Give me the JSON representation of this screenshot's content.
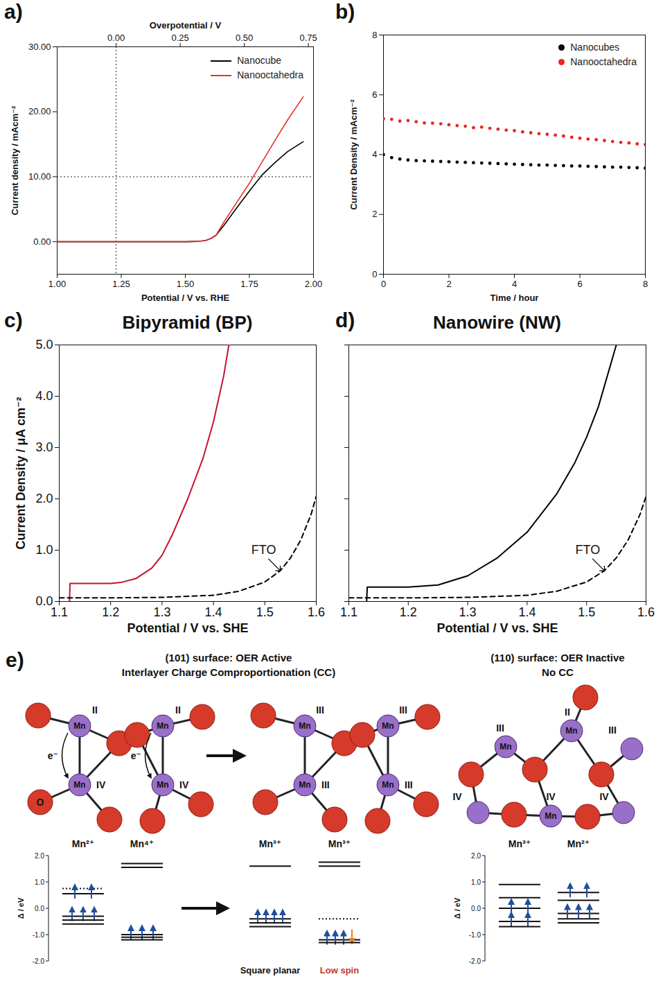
{
  "chart_data": [
    {
      "type": "line",
      "panel_label": "a)",
      "xlabel": "Potential / V vs. RHE",
      "ylabel": "Current density / mAcm⁻²",
      "x2label": "Overpotential / V",
      "xlim": [
        1.0,
        2.0
      ],
      "xticks": [
        {
          "value": 1,
          "label": "1.00"
        },
        1.25,
        {
          "value": 1.5,
          "label": "1.50"
        },
        1.75,
        {
          "value": 2,
          "label": "2.00"
        }
      ],
      "x2lim": [
        -0.23,
        0.77
      ],
      "x2ticks": [
        {
          "value": 0,
          "label": "0.00"
        },
        0.25,
        {
          "value": 0.5,
          "label": "0.50"
        },
        0.75
      ],
      "ylim": [
        -5,
        30
      ],
      "yticks": [
        {
          "value": 0,
          "label": "0.00"
        },
        {
          "value": 10,
          "label": "10.00"
        },
        {
          "value": 20,
          "label": "20.00"
        },
        {
          "value": 30,
          "label": "30.00"
        }
      ],
      "reference_lines": [
        {
          "axis": "x",
          "value": 1.23,
          "line_style": "dotted"
        },
        {
          "axis": "y",
          "value": 10,
          "line_style": "dotted"
        }
      ],
      "legend": "top-right",
      "x": [
        1.0,
        1.25,
        1.5,
        1.55,
        1.58,
        1.6,
        1.62,
        1.65,
        1.7,
        1.75,
        1.8,
        1.85,
        1.9,
        1.96
      ],
      "series": [
        {
          "name": "Nanocube",
          "color": "#000000",
          "values": [
            0,
            0,
            0,
            0.05,
            0.2,
            0.5,
            1.0,
            2.5,
            5.2,
            7.8,
            10.3,
            12.2,
            13.9,
            15.4
          ]
        },
        {
          "name": "Nanooctahedra",
          "color": "#e8302a",
          "values": [
            0,
            0,
            0,
            0.05,
            0.2,
            0.5,
            1.0,
            3.0,
            6.0,
            9.0,
            12.3,
            15.6,
            18.8,
            22.3
          ]
        }
      ]
    },
    {
      "type": "scatter",
      "panel_label": "b)",
      "xlabel": "Time / hour",
      "ylabel": "Current Density / mAcm⁻²",
      "xlim": [
        0,
        8
      ],
      "xticks": [
        0,
        2,
        4,
        6,
        8
      ],
      "ylim": [
        0,
        8
      ],
      "yticks": [
        0,
        2,
        4,
        6,
        8
      ],
      "legend": "top-right",
      "x": [
        0,
        0.25,
        0.5,
        0.75,
        1,
        1.25,
        1.5,
        1.75,
        2,
        2.25,
        2.5,
        2.75,
        3,
        3.25,
        3.5,
        3.75,
        4,
        4.25,
        4.5,
        4.75,
        5,
        5.25,
        5.5,
        5.75,
        6,
        6.25,
        6.5,
        6.75,
        7,
        7.25,
        7.5,
        7.75,
        8
      ],
      "series": [
        {
          "name": "Nanocubes",
          "color": "#000000",
          "values": [
            4.0,
            3.9,
            3.85,
            3.82,
            3.8,
            3.79,
            3.78,
            3.77,
            3.76,
            3.75,
            3.74,
            3.73,
            3.72,
            3.71,
            3.7,
            3.69,
            3.68,
            3.67,
            3.66,
            3.65,
            3.65,
            3.64,
            3.63,
            3.62,
            3.62,
            3.61,
            3.6,
            3.59,
            3.58,
            3.58,
            3.57,
            3.56,
            3.55
          ]
        },
        {
          "name": "Nanooctahedra",
          "color": "#e8261f",
          "values": [
            5.2,
            5.18,
            5.12,
            5.14,
            5.1,
            5.06,
            5.05,
            5.03,
            5.0,
            4.97,
            4.95,
            4.9,
            4.92,
            4.88,
            4.85,
            4.82,
            4.8,
            4.76,
            4.73,
            4.7,
            4.68,
            4.65,
            4.62,
            4.58,
            4.55,
            4.52,
            4.5,
            4.47,
            4.44,
            4.41,
            4.39,
            4.36,
            4.34
          ]
        }
      ]
    },
    {
      "type": "line",
      "panel_label": "c)",
      "title": "Bipyramid (BP)",
      "xlabel": "Potential / V vs. SHE",
      "ylabel": "Current Density / μA cm⁻²",
      "xlim": [
        1.1,
        1.6
      ],
      "xticks": [
        1.1,
        1.2,
        1.3,
        1.4,
        1.5,
        1.6
      ],
      "ylim": [
        0,
        5
      ],
      "yticks": [
        {
          "value": 0,
          "label": "0.0"
        },
        {
          "value": 1,
          "label": "1.0"
        },
        {
          "value": 2,
          "label": "2.0"
        },
        {
          "value": 3,
          "label": "3.0"
        },
        {
          "value": 4,
          "label": "4.0"
        },
        {
          "value": 5,
          "label": "5.0"
        }
      ],
      "annotations": [
        {
          "text": "FTO",
          "x": 1.53,
          "y": 0.6
        }
      ],
      "series": [
        {
          "color": "#c8102e",
          "line_style": "solid",
          "x": [
            1.12,
            1.121,
            1.15,
            1.2,
            1.22,
            1.25,
            1.28,
            1.3,
            1.32,
            1.35,
            1.38,
            1.4,
            1.42,
            1.43
          ],
          "values": [
            0,
            0.35,
            0.35,
            0.35,
            0.37,
            0.45,
            0.65,
            0.9,
            1.3,
            2.0,
            2.8,
            3.5,
            4.4,
            5.0
          ]
        },
        {
          "color": "#000000",
          "line_style": "dashed",
          "x": [
            1.1,
            1.2,
            1.3,
            1.4,
            1.45,
            1.5,
            1.53,
            1.55,
            1.57,
            1.59,
            1.6
          ],
          "values": [
            0.07,
            0.07,
            0.08,
            0.12,
            0.2,
            0.38,
            0.6,
            0.85,
            1.2,
            1.7,
            2.05
          ]
        }
      ]
    },
    {
      "type": "line",
      "panel_label": "d)",
      "title": "Nanowire (NW)",
      "xlabel": "Potential / V vs. SHE",
      "xlim": [
        1.1,
        1.6
      ],
      "xticks": [
        1.1,
        1.2,
        1.3,
        1.4,
        1.5,
        1.6
      ],
      "ylim": [
        0,
        5
      ],
      "yticks": [
        0,
        1,
        2,
        3,
        4,
        5
      ],
      "tick_labels": "x",
      "annotations": [
        {
          "text": "FTO",
          "x": 1.53,
          "y": 0.6
        }
      ],
      "series": [
        {
          "color": "#000000",
          "line_style": "solid",
          "x": [
            1.13,
            1.131,
            1.2,
            1.25,
            1.3,
            1.35,
            1.4,
            1.45,
            1.48,
            1.5,
            1.52,
            1.54,
            1.55
          ],
          "values": [
            0,
            0.28,
            0.28,
            0.32,
            0.5,
            0.85,
            1.35,
            2.1,
            2.7,
            3.2,
            3.8,
            4.6,
            5.0
          ]
        },
        {
          "color": "#000000",
          "line_style": "dashed",
          "x": [
            1.1,
            1.2,
            1.3,
            1.4,
            1.45,
            1.5,
            1.53,
            1.55,
            1.57,
            1.59,
            1.6
          ],
          "values": [
            0.07,
            0.07,
            0.08,
            0.12,
            0.2,
            0.38,
            0.6,
            0.85,
            1.2,
            1.7,
            2.05
          ]
        }
      ]
    }
  ],
  "diagram": {
    "panel_label": "e)",
    "sections": [
      {
        "title": "(101) surface: OER Active",
        "subtitle": "Interlayer Charge Comproportionation (CC)"
      },
      {
        "title": "(110) surface: OER Inactive",
        "subtitle": "No CC"
      }
    ],
    "structures": [
      {
        "oxygen_label": "O",
        "transfer_label": "e⁻",
        "atoms": [
          {
            "label": "Mn",
            "state": "II"
          },
          {
            "label": "Mn",
            "state": "II"
          },
          {
            "label": "Mn",
            "state": "IV"
          },
          {
            "label": "Mn",
            "state": "IV"
          }
        ]
      },
      {
        "atoms": [
          {
            "label": "Mn",
            "state": "III"
          },
          {
            "label": "Mn",
            "state": "III"
          },
          {
            "label": "Mn",
            "state": "III"
          },
          {
            "label": "Mn",
            "state": "III"
          }
        ]
      },
      {
        "atoms": [
          {
            "label": "Mn",
            "state": "III"
          },
          {
            "label": "Mn",
            "state": "II"
          },
          {
            "state": "III"
          },
          {
            "state": "IV"
          },
          {
            "label": "Mn",
            "state": "IV"
          },
          {
            "state": "IV"
          }
        ]
      }
    ],
    "energy_groups": [
      {
        "axis": {
          "label": "Δ / eV",
          "ticks": [
            {
              "value": 2,
              "label": "2.0"
            },
            {
              "value": 1,
              "label": "1.0"
            },
            {
              "value": 0,
              "label": "0.0"
            },
            {
              "value": -1,
              "label": "-1.0"
            },
            {
              "value": -2,
              "label": "-2.0"
            }
          ]
        },
        "ions": [
          {
            "label": "Mn²⁺",
            "levels": [
              {
                "energy": 0.75,
                "line_style": "dotted"
              },
              {
                "energy": 0.55,
                "up": 2
              },
              {
                "energy": -0.3,
                "up": 3
              },
              {
                "energy": -0.45
              },
              {
                "energy": -0.6
              }
            ]
          },
          {
            "label": "Mn⁴⁺",
            "levels": [
              {
                "energy": 1.7
              },
              {
                "energy": 1.55
              },
              {
                "energy": -1.0,
                "up": 3
              },
              {
                "energy": -1.1
              },
              {
                "energy": -1.2
              }
            ]
          }
        ]
      },
      {
        "ions": [
          {
            "label": "Mn³⁺",
            "caption": {
              "text": "Square planar",
              "color": "#111111"
            },
            "levels": [
              {
                "energy": 1.6
              },
              {
                "energy": -0.4,
                "up": 4
              },
              {
                "energy": -0.55
              },
              {
                "energy": -0.7
              }
            ]
          },
          {
            "label": "Mn³⁺",
            "caption": {
              "text": "Low spin",
              "color": "#c0392b"
            },
            "levels": [
              {
                "energy": 1.75
              },
              {
                "energy": 1.6
              },
              {
                "energy": -0.4,
                "line_style": "dotted"
              },
              {
                "energy": -1.2,
                "up": 3,
                "down": 1
              },
              {
                "energy": -1.3
              }
            ]
          }
        ]
      },
      {
        "axis": {
          "label": "Δ / eV",
          "ticks": [
            {
              "value": 2,
              "label": "2.0"
            },
            {
              "value": 1,
              "label": "1.0"
            },
            {
              "value": 0,
              "label": "0.0"
            },
            {
              "value": -1,
              "label": "-1.0"
            },
            {
              "value": -2,
              "label": "-2.0"
            }
          ]
        },
        "ions": [
          {
            "label": "Mn³⁺",
            "levels": [
              {
                "energy": 0.9
              },
              {
                "energy": 0.4
              },
              {
                "energy": 0.0,
                "up": 2
              },
              {
                "energy": -0.5,
                "up": 2
              },
              {
                "energy": -0.7
              }
            ]
          },
          {
            "label": "Mn²⁺",
            "levels": [
              {
                "energy": 0.6,
                "up": 2
              },
              {
                "energy": 0.3
              },
              {
                "energy": -0.2,
                "up": 3
              },
              {
                "energy": -0.4
              },
              {
                "energy": -0.55
              }
            ]
          }
        ]
      }
    ]
  }
}
